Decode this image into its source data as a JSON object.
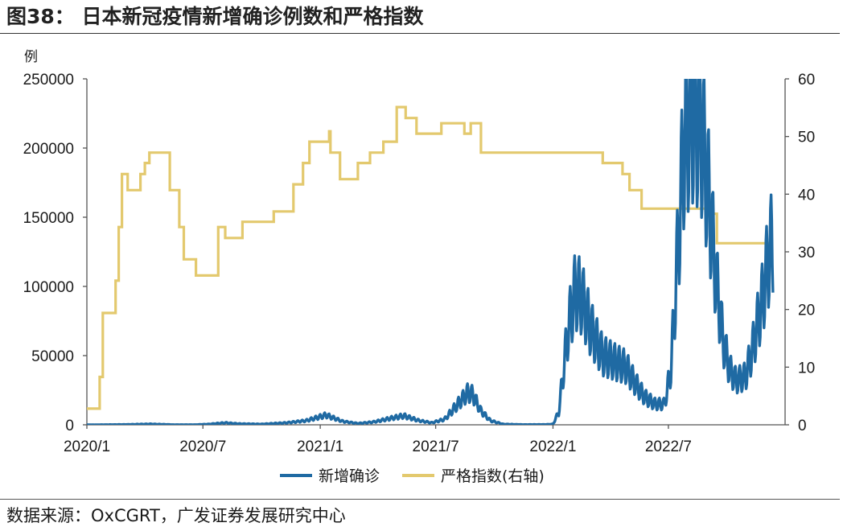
{
  "title": "图38： 日本新冠疫情新增确诊例数和严格指数",
  "source": "数据来源：OxCGRT，广发证券发展研究中心",
  "chart_data": {
    "type": "line",
    "unit_label": "例",
    "left_axis": {
      "ylim": [
        0,
        250000
      ],
      "ticks": [
        "250000",
        "200000",
        "150000",
        "100000",
        "50000",
        "0"
      ]
    },
    "right_axis": {
      "ylim": [
        0,
        60
      ],
      "ticks": [
        "60",
        "50",
        "40",
        "30",
        "20",
        "10",
        "0"
      ]
    },
    "x_axis": {
      "range": [
        "2020-01",
        "2022-12"
      ],
      "tick_labels": [
        "2020/1",
        "2020/7",
        "2021/1",
        "2021/7",
        "2022/1",
        "2022/7"
      ]
    },
    "legend_position": "bottom-center",
    "series": [
      {
        "name": "新增确诊",
        "axis": "left",
        "color": "#1f6aa3",
        "style": "daily values with strong weekly oscillation",
        "points": [
          [
            "2020-01-01",
            0
          ],
          [
            "2020-03-01",
            200
          ],
          [
            "2020-04-10",
            600
          ],
          [
            "2020-05-15",
            100
          ],
          [
            "2020-06-20",
            100
          ],
          [
            "2020-07-10",
            500
          ],
          [
            "2020-08-05",
            1500
          ],
          [
            "2020-08-25",
            800
          ],
          [
            "2020-09-30",
            500
          ],
          [
            "2020-11-10",
            1500
          ],
          [
            "2020-12-10",
            3000
          ],
          [
            "2021-01-10",
            7000
          ],
          [
            "2021-02-05",
            2500
          ],
          [
            "2021-03-01",
            1000
          ],
          [
            "2021-03-25",
            2000
          ],
          [
            "2021-04-25",
            5000
          ],
          [
            "2021-05-12",
            6500
          ],
          [
            "2021-06-05",
            3000
          ],
          [
            "2021-06-25",
            1500
          ],
          [
            "2021-07-15",
            4000
          ],
          [
            "2021-08-05",
            15000
          ],
          [
            "2021-08-20",
            23000
          ],
          [
            "2021-08-28",
            22000
          ],
          [
            "2021-09-10",
            10000
          ],
          [
            "2021-09-25",
            3000
          ],
          [
            "2021-10-15",
            500
          ],
          [
            "2021-11-15",
            150
          ],
          [
            "2021-12-20",
            200
          ],
          [
            "2022-01-01",
            500
          ],
          [
            "2022-01-10",
            9000
          ],
          [
            "2022-01-25",
            70000
          ],
          [
            "2022-02-05",
            97000
          ],
          [
            "2022-02-15",
            92000
          ],
          [
            "2022-03-01",
            70000
          ],
          [
            "2022-03-20",
            50000
          ],
          [
            "2022-04-10",
            45000
          ],
          [
            "2022-04-25",
            42000
          ],
          [
            "2022-05-10",
            30000
          ],
          [
            "2022-05-25",
            20000
          ],
          [
            "2022-06-10",
            15000
          ],
          [
            "2022-06-25",
            15000
          ],
          [
            "2022-07-05",
            40000
          ],
          [
            "2022-07-15",
            120000
          ],
          [
            "2022-07-25",
            200000
          ],
          [
            "2022-08-05",
            228000
          ],
          [
            "2022-08-20",
            220000
          ],
          [
            "2022-09-01",
            170000
          ],
          [
            "2022-09-15",
            100000
          ],
          [
            "2022-09-25",
            60000
          ],
          [
            "2022-10-05",
            40000
          ],
          [
            "2022-10-15",
            32000
          ],
          [
            "2022-10-30",
            35000
          ],
          [
            "2022-11-10",
            55000
          ],
          [
            "2022-11-25",
            90000
          ],
          [
            "2022-12-05",
            120000
          ],
          [
            "2022-12-12",
            135000
          ]
        ]
      },
      {
        "name": "严格指数(右轴)",
        "axis": "right",
        "color": "#e3c96e",
        "style": "step",
        "steps": [
          [
            "2020-01-01",
            2.8
          ],
          [
            "2020-01-21",
            8.3
          ],
          [
            "2020-01-26",
            19.4
          ],
          [
            "2020-02-15",
            25.0
          ],
          [
            "2020-02-20",
            34.3
          ],
          [
            "2020-02-25",
            43.5
          ],
          [
            "2020-03-05",
            40.7
          ],
          [
            "2020-03-25",
            43.5
          ],
          [
            "2020-04-01",
            45.4
          ],
          [
            "2020-04-08",
            47.2
          ],
          [
            "2020-05-10",
            40.7
          ],
          [
            "2020-05-25",
            34.3
          ],
          [
            "2020-06-01",
            28.7
          ],
          [
            "2020-06-20",
            25.9
          ],
          [
            "2020-07-25",
            34.3
          ],
          [
            "2020-08-05",
            32.4
          ],
          [
            "2020-09-01",
            35.2
          ],
          [
            "2020-10-20",
            37.0
          ],
          [
            "2020-11-20",
            41.7
          ],
          [
            "2020-12-05",
            45.4
          ],
          [
            "2020-12-15",
            49.1
          ],
          [
            "2021-01-15",
            50.9
          ],
          [
            "2021-01-17",
            47.2
          ],
          [
            "2021-02-01",
            42.6
          ],
          [
            "2021-03-01",
            45.4
          ],
          [
            "2021-03-20",
            47.2
          ],
          [
            "2021-04-10",
            49.1
          ],
          [
            "2021-05-01",
            55.1
          ],
          [
            "2021-05-15",
            53.2
          ],
          [
            "2021-06-01",
            50.5
          ],
          [
            "2021-07-10",
            52.3
          ],
          [
            "2021-08-15",
            50.5
          ],
          [
            "2021-08-25",
            52.3
          ],
          [
            "2021-09-10",
            47.2
          ],
          [
            "2022-03-20",
            45.4
          ],
          [
            "2022-04-20",
            43.5
          ],
          [
            "2022-05-01",
            40.7
          ],
          [
            "2022-05-20",
            37.5
          ],
          [
            "2022-09-01",
            36.6
          ],
          [
            "2022-09-15",
            31.5
          ],
          [
            "2022-12-12",
            31.5
          ]
        ]
      }
    ]
  }
}
